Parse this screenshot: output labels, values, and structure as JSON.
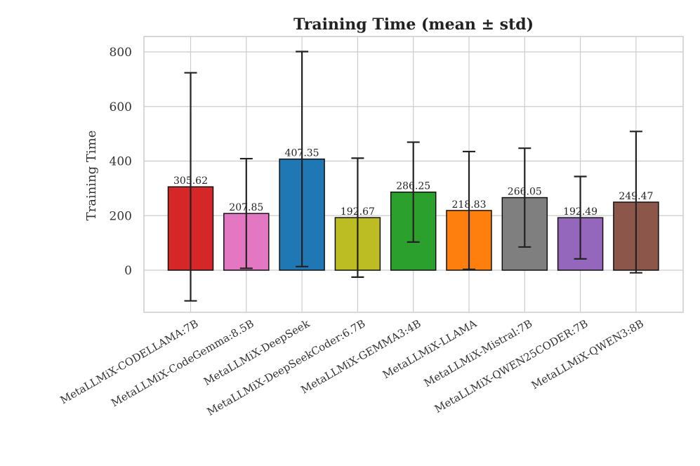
{
  "chart_data": {
    "type": "bar",
    "title": "Training Time (mean ± std)",
    "xlabel": "",
    "ylabel": "Training Time",
    "ylim": [
      -160,
      860
    ],
    "yticks": [
      0,
      200,
      400,
      600,
      800
    ],
    "grid": true,
    "categories": [
      "MetaLLMiX-CODELLAMA:7B",
      "MetaLLMiX-CodeGemma:8.5B",
      "MetaLLMiX-DeepSeek",
      "MetaLLMiX-DeepSeekCoder:6.7B",
      "MetaLLMiX-GEMMA3:4B",
      "MetaLLMiX-LLAMA",
      "MetaLLMiX-Mistral:7B",
      "MetaLLMiX-QWEN25CODER:7B",
      "MetaLLMiX-QWEN3:8B"
    ],
    "values": [
      305.62,
      207.85,
      407.35,
      192.67,
      286.25,
      218.83,
      266.05,
      192.49,
      249.47
    ],
    "value_labels": [
      "305.62",
      "207.85",
      "407.35",
      "192.67",
      "286.25",
      "218.83",
      "266.05",
      "192.49",
      "249.47"
    ],
    "errors": [
      418,
      201,
      394,
      218,
      183,
      216,
      181,
      151,
      259
    ],
    "colors": [
      "#d62728",
      "#e377c2",
      "#1f77b4",
      "#bcbd22",
      "#2ca02c",
      "#ff7f0e",
      "#7f7f7f",
      "#9467bd",
      "#8c564b"
    ]
  }
}
